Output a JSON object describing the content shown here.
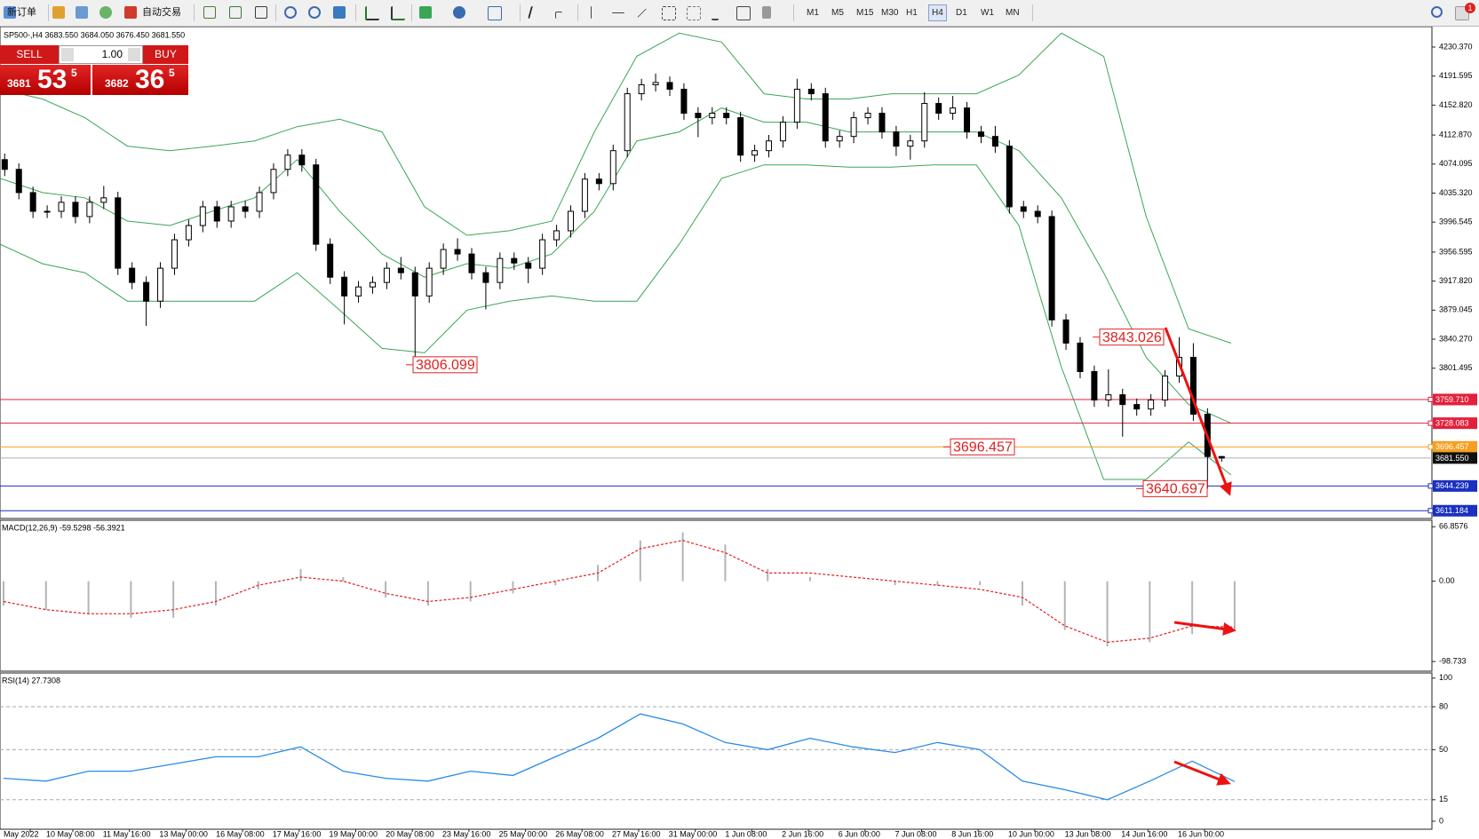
{
  "toolbar": {
    "new_order": "新订单",
    "auto_trade": "自动交易",
    "timeframes": [
      "M1",
      "M5",
      "M15",
      "M30",
      "H1",
      "H4",
      "D1",
      "W1",
      "MN"
    ],
    "active_timeframe": 5,
    "notifications": "1"
  },
  "trade_panel": {
    "sell": "SELL",
    "buy": "BUY",
    "volume": "1.00",
    "sell_price": {
      "big": "3681",
      "pips": "53",
      "point": "5"
    },
    "buy_price": {
      "big": "3682",
      "pips": "36",
      "point": "5"
    }
  },
  "time_axis": [
    "May 2022",
    "10 May 08:00",
    "11 May 16:00",
    "13 May 00:00",
    "16 May 08:00",
    "17 May 16:00",
    "19 May 00:00",
    "20 May 08:00",
    "23 May 16:00",
    "25 May 00:00",
    "26 May 08:00",
    "27 May 16:00",
    "31 May 00:00",
    "1 Jun 08:00",
    "2 Jun 16:00",
    "6 Jun 00:00",
    "7 Jun 08:00",
    "8 Jun 16:00",
    "10 Jun 00:00",
    "13 Jun 08:00",
    "14 Jun 16:00",
    "16 Jun 00:00"
  ],
  "chart_data": [
    {
      "type": "candlestick",
      "title": "SP500-,H4  3683.550 3684.050 3676.450 3681.550",
      "open": [
        4080,
        4067,
        4036,
        4011,
        4011,
        4023,
        4004,
        4023,
        4029,
        3935,
        3916,
        3891,
        3935,
        3973,
        3992,
        4017,
        3998,
        4017,
        4011,
        4036,
        4067,
        4086,
        4073,
        3967,
        3923,
        3898,
        3910,
        3916,
        3935,
        3929,
        3898,
        3935,
        3960,
        3954,
        3929,
        3916,
        3948,
        3942,
        3935,
        3973,
        3985,
        4011,
        4054,
        4048,
        4092,
        4168,
        4180,
        4183,
        4174,
        4142,
        4136,
        4142,
        4136,
        4086,
        4092,
        4105,
        4130,
        4174,
        4168,
        4105,
        4111,
        4136,
        4142,
        4117,
        4098,
        4105,
        4155,
        4142,
        4149,
        4117,
        4111,
        4098,
        4017,
        4011,
        4004,
        3866,
        3835,
        3797,
        3759,
        3766,
        3753,
        3747,
        3759,
        3791,
        3816,
        3740,
        3683.55
      ],
      "high": [
        4088,
        4075,
        4044,
        4019,
        4031,
        4031,
        4031,
        4045,
        4037,
        3943,
        3924,
        3943,
        3981,
        4000,
        4025,
        4025,
        4025,
        4025,
        4044,
        4075,
        4094,
        4094,
        4081,
        3975,
        3931,
        3918,
        3924,
        3943,
        3950,
        3937,
        3943,
        3968,
        3975,
        3962,
        3937,
        3956,
        3956,
        3950,
        3981,
        3993,
        4019,
        4062,
        4062,
        4100,
        4176,
        4188,
        4195,
        4191,
        4182,
        4150,
        4150,
        4150,
        4144,
        4100,
        4113,
        4138,
        4188,
        4182,
        4176,
        4119,
        4144,
        4150,
        4150,
        4125,
        4113,
        4170,
        4163,
        4165,
        4157,
        4125,
        4125,
        4106,
        4025,
        4019,
        4012,
        3874,
        3843,
        3805,
        3800,
        3774,
        3761,
        3767,
        3799,
        3843.026,
        3835,
        3748,
        3684.05
      ],
      "low": [
        4058,
        4027,
        4002,
        4002,
        4002,
        3995,
        3995,
        4014,
        3926,
        3907,
        3858,
        3882,
        3926,
        3964,
        3983,
        3989,
        3989,
        4002,
        4002,
        4027,
        4058,
        4064,
        3958,
        3914,
        3860,
        3889,
        3901,
        3907,
        3920,
        3806.099,
        3889,
        3926,
        3945,
        3920,
        3880,
        3907,
        3933,
        3915,
        3926,
        3964,
        3976,
        4002,
        4039,
        4039,
        4083,
        4159,
        4171,
        4165,
        4133,
        4110,
        4127,
        4127,
        4077,
        4077,
        4083,
        4096,
        4121,
        4159,
        4096,
        4096,
        4102,
        4127,
        4108,
        4085,
        4080,
        4096,
        4133,
        4133,
        4108,
        4102,
        4089,
        4008,
        4002,
        3995,
        3857,
        3826,
        3788,
        3750,
        3750,
        3710,
        3738,
        3738,
        3750,
        3782,
        3731,
        3640.697,
        3676.45
      ],
      "close": [
        4067,
        4036,
        4011,
        4011,
        4023,
        4004,
        4023,
        4029,
        3935,
        3916,
        3891,
        3935,
        3973,
        3992,
        4017,
        3998,
        4017,
        4011,
        4036,
        4067,
        4086,
        4073,
        3967,
        3923,
        3898,
        3910,
        3916,
        3935,
        3929,
        3898,
        3935,
        3960,
        3954,
        3929,
        3916,
        3948,
        3942,
        3935,
        3973,
        3985,
        4011,
        4054,
        4048,
        4092,
        4168,
        4180,
        4183,
        4174,
        4142,
        4136,
        4142,
        4136,
        4086,
        4092,
        4105,
        4130,
        4174,
        4168,
        4105,
        4111,
        4136,
        4142,
        4117,
        4098,
        4105,
        4155,
        4142,
        4149,
        4117,
        4111,
        4098,
        4017,
        4011,
        4004,
        3866,
        3835,
        3797,
        3759,
        3766,
        3753,
        3747,
        3759,
        3791,
        3816,
        3740,
        3683.55,
        3681.55
      ],
      "bands": {
        "color": "#3aa655",
        "upper": [
          4174,
          4161,
          4136,
          4098,
          4092,
          4098,
          4105,
          4124,
          4134,
          4117,
          4017,
          3979,
          3985,
          3998,
          4117,
          4218,
          4249,
          4237,
          4168,
          4161,
          4161,
          4168,
          4168,
          4168,
          4193,
          4249,
          4218,
          4004,
          3854,
          3835
        ],
        "middle": [
          4055,
          4036,
          4029,
          3998,
          3992,
          4011,
          4029,
          4080,
          4011,
          3954,
          3923,
          3941,
          3935,
          3954,
          4011,
          4105,
          4117,
          4149,
          4130,
          4130,
          4117,
          4117,
          4117,
          4117,
          4092,
          4029,
          3929,
          3816,
          3753,
          3728
        ],
        "lower": [
          3967,
          3941,
          3929,
          3891,
          3891,
          3891,
          3891,
          3929,
          3879,
          3828,
          3822,
          3879,
          3891,
          3898,
          3891,
          3891,
          3967,
          4055,
          4073,
          4073,
          4070,
          4070,
          4073,
          4073,
          3992,
          3803,
          3653,
          3653,
          3703,
          3659
        ]
      },
      "ylim": [
        3600.8,
        4257.6
      ],
      "yticks": [
        {
          "value": 4230.37,
          "label": "4230.370"
        },
        {
          "value": 4191.595,
          "label": "4191.595"
        },
        {
          "value": 4152.82,
          "label": "4152.820"
        },
        {
          "value": 4112.87,
          "label": "4112.870"
        },
        {
          "value": 4074.095,
          "label": "4074.095"
        },
        {
          "value": 4035.32,
          "label": "4035.320"
        },
        {
          "value": 3996.545,
          "label": "3996.545"
        },
        {
          "value": 3956.595,
          "label": "3956.595"
        },
        {
          "value": 3917.82,
          "label": "3917.820"
        },
        {
          "value": 3879.045,
          "label": "3879.045"
        },
        {
          "value": 3840.27,
          "label": "3840.270"
        },
        {
          "value": 3801.495,
          "label": "3801.495"
        }
      ],
      "hlines": [
        {
          "value": 3759.71,
          "label": "3759.710",
          "color": "#e3203c"
        },
        {
          "value": 3728.083,
          "label": "3728.083",
          "color": "#e3203c"
        },
        {
          "value": 3696.457,
          "label": "3696.457",
          "color": "#f5a020"
        },
        {
          "value": 3644.239,
          "label": "3644.239",
          "color": "#1a30c0"
        },
        {
          "value": 3611.184,
          "label": "3611.184",
          "color": "#1a30c0"
        }
      ],
      "current": {
        "value": 3681.55,
        "label": "3681.550"
      },
      "annotations": [
        {
          "value": 3806.099,
          "label": "3806.099"
        },
        {
          "value": 3843.026,
          "label": "3843.026"
        },
        {
          "value": 3696.457,
          "label": "3696.457"
        },
        {
          "value": 3640.697,
          "label": "3640.697"
        }
      ]
    },
    {
      "type": "macd",
      "title": "MACD(12,26,9) -59.5298 -56.3921",
      "histogram": [
        -30,
        -35,
        -40,
        -45,
        -45,
        -30,
        -10,
        15,
        5,
        -20,
        -30,
        -25,
        -15,
        -5,
        20,
        50,
        60,
        45,
        15,
        5,
        0,
        -5,
        -5,
        -5,
        -30,
        -60,
        -80,
        -75,
        -65,
        -59.5298
      ],
      "signal": [
        -25,
        -35,
        -40,
        -40,
        -35,
        -25,
        -5,
        5,
        0,
        -15,
        -25,
        -20,
        -10,
        0,
        10,
        40,
        50,
        35,
        10,
        10,
        5,
        0,
        -5,
        -10,
        -20,
        -55,
        -75,
        -70,
        -55,
        -56.3921
      ],
      "histogram_color": "#b4b4b4",
      "signal_color": "#e02020",
      "ylim": [
        -110.6,
        74.8
      ],
      "yticks": [
        66.8576,
        {
          "value": 0,
          "label": "0.00"
        },
        -98.733
      ]
    },
    {
      "type": "line",
      "title": "RSI(14) 27.7308",
      "values": [
        30,
        28,
        35,
        35,
        40,
        45,
        45,
        52,
        35,
        30,
        28,
        35,
        32,
        45,
        58,
        75,
        68,
        55,
        50,
        58,
        52,
        48,
        55,
        50,
        28,
        22,
        15,
        28,
        42,
        27.7308
      ],
      "color": "#2b8be8",
      "ylim": [
        -5.6,
        103.6
      ],
      "yticks": [
        100,
        80,
        50,
        15,
        0
      ],
      "levels": [
        80,
        50,
        15
      ]
    }
  ]
}
